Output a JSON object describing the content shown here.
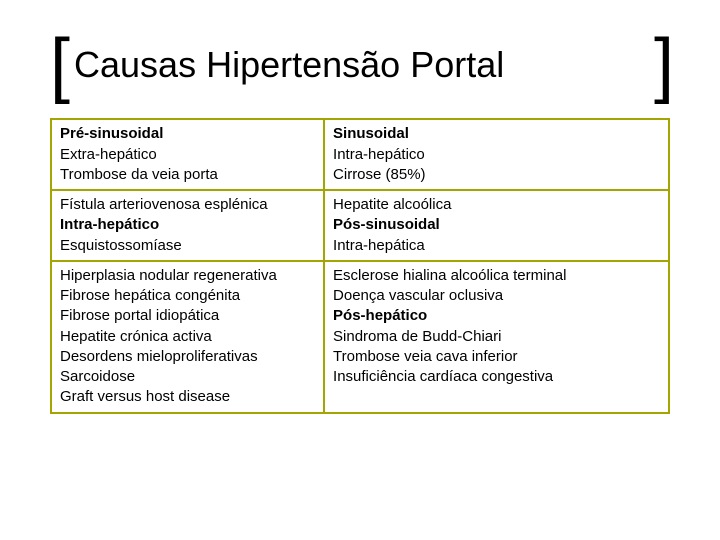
{
  "title": "Causas Hipertensão Portal",
  "border_color": "#a3a500",
  "table": {
    "rows": [
      {
        "left": [
          {
            "text": "Pré-sinusoidal",
            "bold": true
          },
          {
            "text": "Extra-hepático",
            "bold": false
          },
          {
            "text": "Trombose da veia porta",
            "bold": false
          }
        ],
        "right": [
          {
            "text": "Sinusoidal",
            "bold": true
          },
          {
            "text": "Intra-hepático",
            "bold": false
          },
          {
            "text": "Cirrose (85%)",
            "bold": false
          }
        ]
      },
      {
        "left": [
          {
            "text": "Fístula arteriovenosa esplénica",
            "bold": false
          },
          {
            "text": "Intra-hepático",
            "bold": true
          },
          {
            "text": "Esquistossomíase",
            "bold": false
          }
        ],
        "right": [
          {
            "text": "Hepatite alcoólica",
            "bold": false
          },
          {
            "text": "Pós-sinusoidal",
            "bold": true
          },
          {
            "text": "Intra-hepática",
            "bold": false
          }
        ]
      },
      {
        "left": [
          {
            "text": "Hiperplasia nodular regenerativa",
            "bold": false
          },
          {
            "text": "Fibrose hepática congénita",
            "bold": false
          },
          {
            "text": "Fibrose portal idiopática",
            "bold": false
          },
          {
            "text": "Hepatite crónica activa",
            "bold": false
          },
          {
            "text": "Desordens  mieloproliferativas",
            "bold": false
          },
          {
            "text": "Sarcoidose",
            "bold": false
          },
          {
            "text": "Graft versus host disease",
            "bold": false
          }
        ],
        "right": [
          {
            "text": "Esclerose hialina alcoólica terminal",
            "bold": false
          },
          {
            "text": "Doença vascular oclusiva",
            "bold": false
          },
          {
            "text": "Pós-hepático",
            "bold": true
          },
          {
            "text": "Sindroma de Budd-Chiari",
            "bold": false
          },
          {
            "text": "Trombose veia cava inferior",
            "bold": false
          },
          {
            "text": "Insuficiência cardíaca congestiva",
            "bold": false
          }
        ]
      }
    ]
  }
}
